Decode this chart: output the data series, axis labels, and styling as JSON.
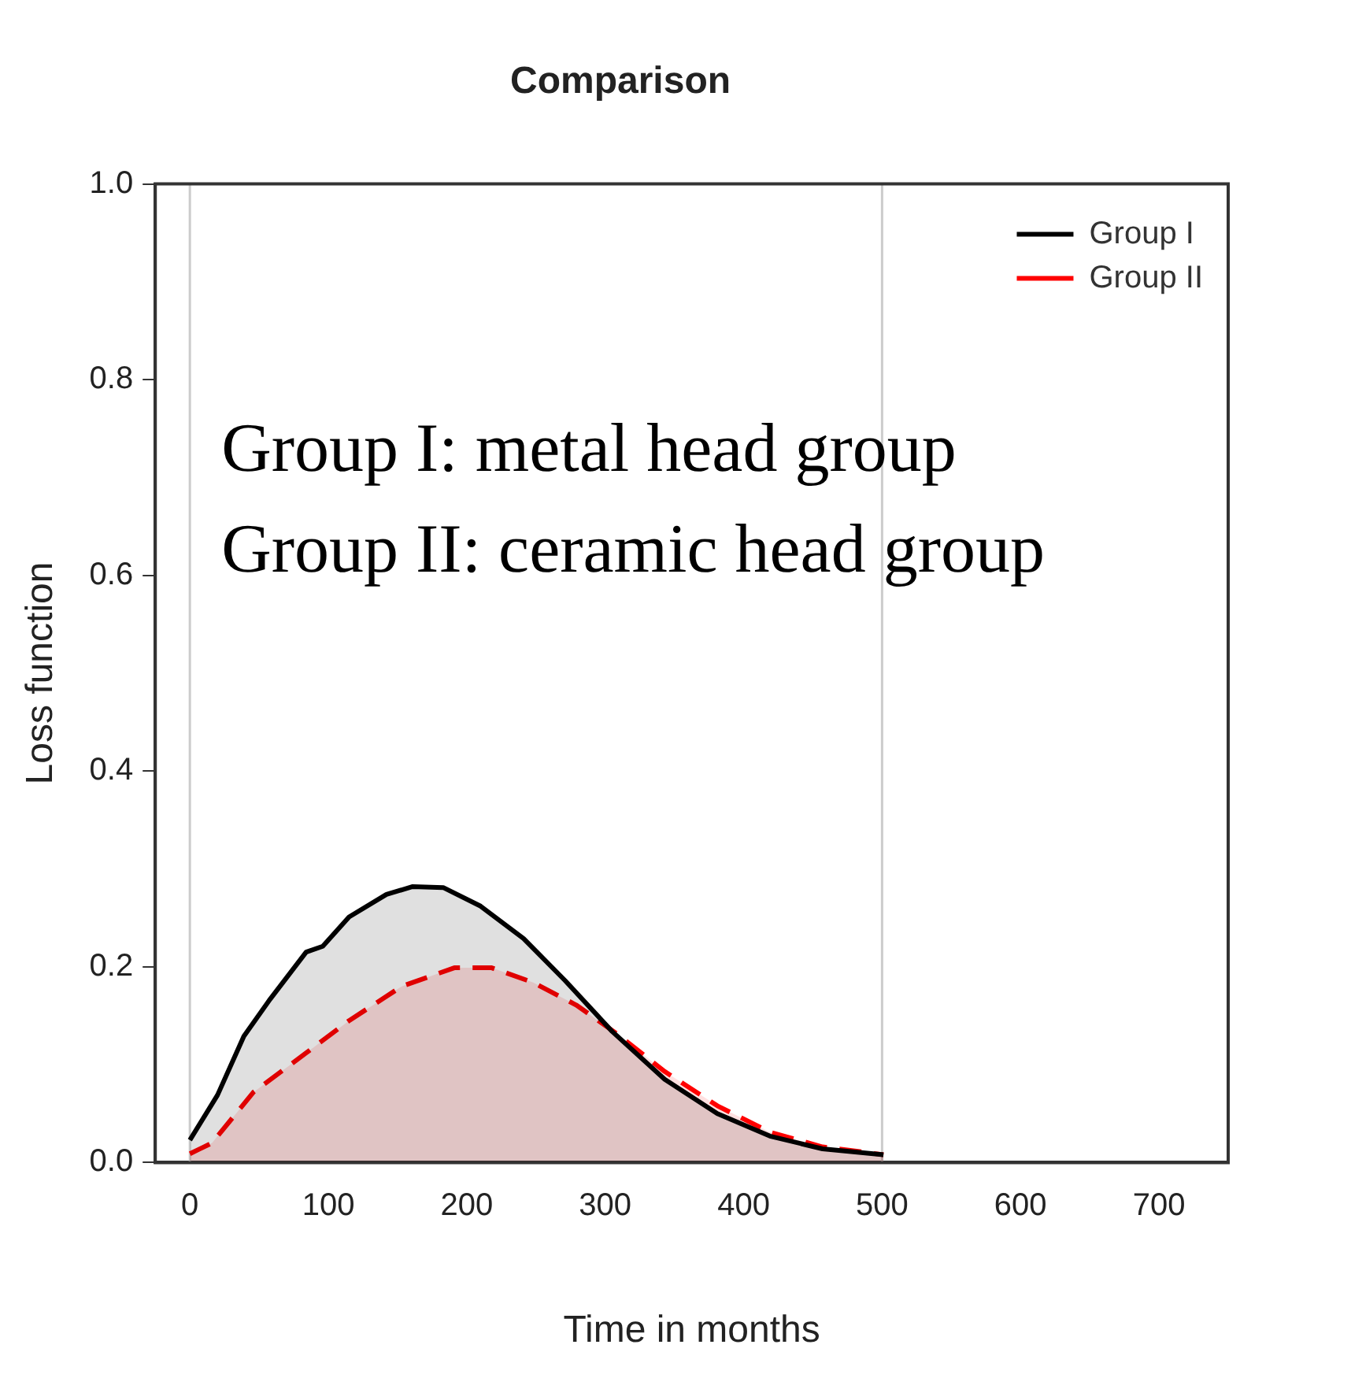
{
  "chart_data": {
    "type": "area",
    "title": "Comparison",
    "xlabel": "Time in months",
    "ylabel": "Loss function",
    "xlim": [
      -25,
      750
    ],
    "xticks": [
      0,
      100,
      200,
      300,
      400,
      500,
      600,
      700
    ],
    "ylim": [
      0,
      1
    ],
    "yticks": [
      {
        "value": 0,
        "label": "0.0"
      },
      0.2,
      0.4,
      0.6,
      0.8,
      {
        "value": 1,
        "label": "1.0"
      }
    ],
    "grid": false,
    "legend": "top right",
    "annotations": [
      "Group I: metal head group",
      "Group II: ceramic head group"
    ],
    "ref_lines": [
      {
        "axis": "x",
        "value": 0,
        "color": "#cccccc"
      },
      {
        "axis": "x",
        "value": 500,
        "color": "#cccccc"
      }
    ],
    "series": [
      {
        "name": "Group I",
        "color": "#000000",
        "line_style": "solid",
        "x": [
          0,
          20,
          39,
          58,
          84,
          96,
          115,
          142,
          161,
          183,
          210,
          241,
          271,
          305,
          343,
          381,
          419,
          457,
          501
        ],
        "values": [
          0.023,
          0.069,
          0.129,
          0.167,
          0.215,
          0.221,
          0.251,
          0.274,
          0.282,
          0.281,
          0.262,
          0.229,
          0.186,
          0.134,
          0.085,
          0.05,
          0.027,
          0.014,
          0.008
        ]
      },
      {
        "name": "Group II",
        "color": "#ff0000",
        "line_style": "dashed",
        "x": [
          0,
          16,
          46,
          84,
          115,
          153,
          191,
          218,
          248,
          279,
          309,
          343,
          381,
          419,
          457,
          501
        ],
        "values": [
          0.009,
          0.02,
          0.072,
          0.112,
          0.145,
          0.18,
          0.199,
          0.199,
          0.184,
          0.161,
          0.131,
          0.093,
          0.058,
          0.031,
          0.016,
          0.008
        ]
      }
    ]
  }
}
